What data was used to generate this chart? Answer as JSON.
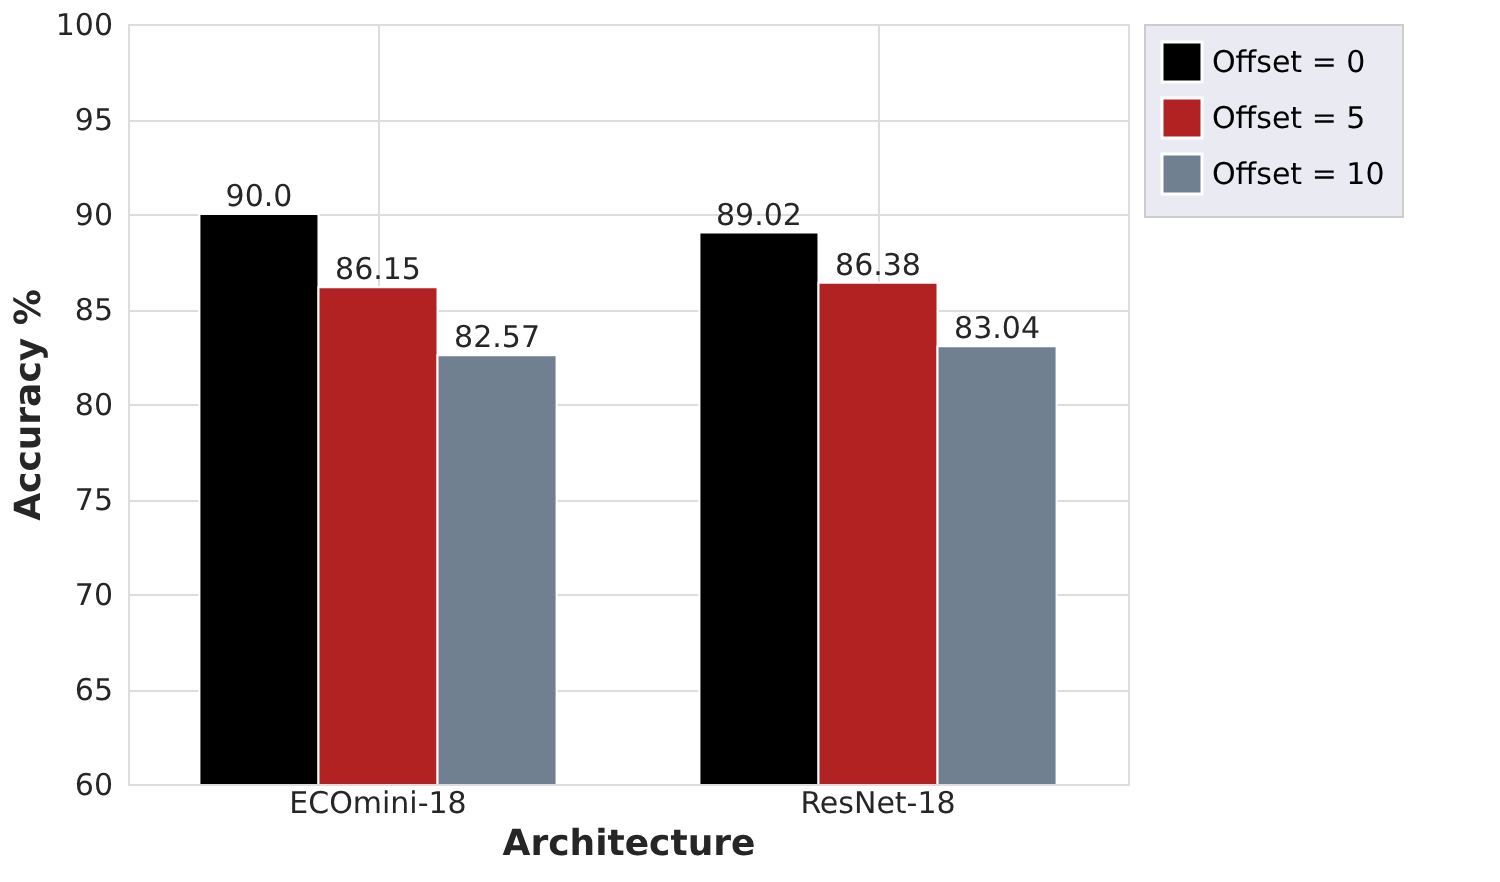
{
  "chart_data": {
    "type": "bar",
    "xlabel": "Architecture",
    "ylabel": "Accuracy %",
    "categories": [
      "ECOmini-18",
      "ResNet-18"
    ],
    "series": [
      {
        "name": "Offset = 0",
        "color": "#000000",
        "values": [
          90.0,
          89.02
        ],
        "value_labels": [
          "90.0",
          "89.02"
        ]
      },
      {
        "name": "Offset = 5",
        "color": "#b22222",
        "values": [
          86.15,
          86.38
        ],
        "value_labels": [
          "86.15",
          "86.38"
        ]
      },
      {
        "name": "Offset = 10",
        "color": "#708090",
        "values": [
          82.57,
          83.04
        ],
        "value_labels": [
          "82.57",
          "83.04"
        ]
      }
    ],
    "ylim": [
      60,
      100
    ],
    "yticks": [
      60,
      65,
      70,
      75,
      80,
      85,
      90,
      95,
      100
    ],
    "grid": true,
    "legend": "top right"
  }
}
